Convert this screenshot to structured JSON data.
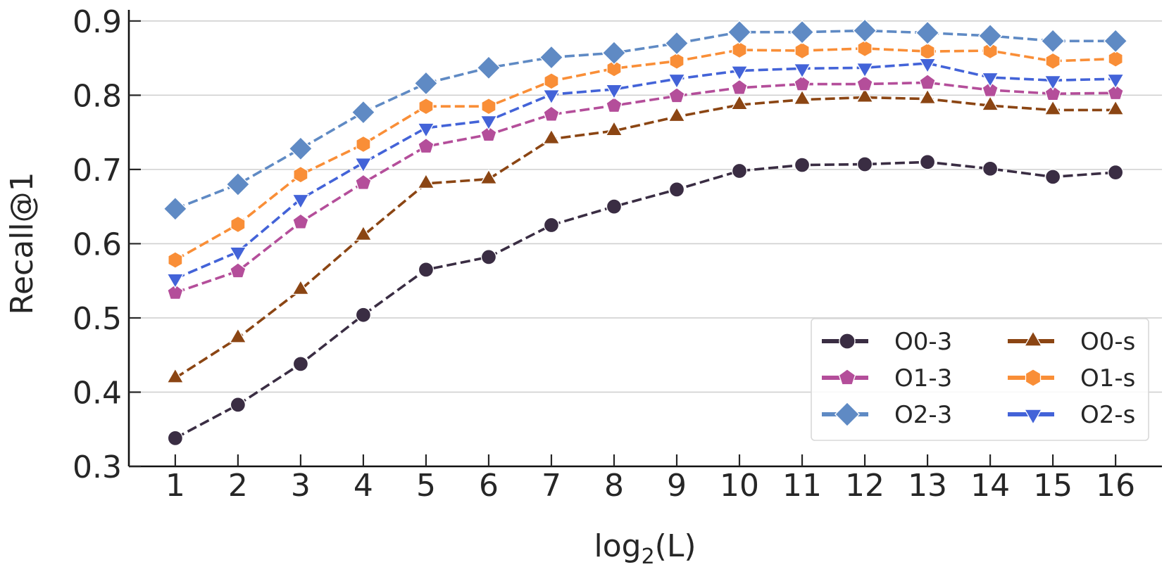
{
  "chart_data": {
    "type": "line",
    "title": "",
    "xlabel_base": "log",
    "xlabel_sub": "2",
    "xlabel_rest": "(L)",
    "xlabel": "log2(L)",
    "ylabel": "Recall@1",
    "x": [
      1,
      2,
      3,
      4,
      5,
      6,
      7,
      8,
      9,
      10,
      11,
      12,
      13,
      14,
      15,
      16
    ],
    "xticks": [
      "1",
      "2",
      "3",
      "4",
      "5",
      "6",
      "7",
      "8",
      "9",
      "10",
      "11",
      "12",
      "13",
      "14",
      "15",
      "16"
    ],
    "yticks": [
      "0.3",
      "0.4",
      "0.5",
      "0.6",
      "0.7",
      "0.8",
      "0.9"
    ],
    "ytick_values": [
      0.3,
      0.4,
      0.5,
      0.6,
      0.7,
      0.8,
      0.9
    ],
    "xlim": [
      0.26,
      16.74
    ],
    "ylim": [
      0.3,
      0.915
    ],
    "grid": "horizontal",
    "legend_position": "lower-right",
    "legend_columns": 2,
    "series": [
      {
        "name": "O0-3",
        "color": "#3a2d43",
        "marker": "circle",
        "values": [
          0.338,
          0.383,
          0.438,
          0.504,
          0.565,
          0.582,
          0.625,
          0.65,
          0.673,
          0.698,
          0.706,
          0.707,
          0.71,
          0.701,
          0.69,
          0.696
        ]
      },
      {
        "name": "O0-s",
        "color": "#8b4513",
        "marker": "triangle-up",
        "values": [
          0.419,
          0.473,
          0.538,
          0.611,
          0.681,
          0.687,
          0.741,
          0.752,
          0.771,
          0.787,
          0.794,
          0.797,
          0.795,
          0.786,
          0.78,
          0.78
        ]
      },
      {
        "name": "O1-3",
        "color": "#b44e9a",
        "marker": "pentagon",
        "values": [
          0.534,
          0.563,
          0.629,
          0.682,
          0.731,
          0.747,
          0.774,
          0.786,
          0.799,
          0.81,
          0.815,
          0.815,
          0.817,
          0.807,
          0.802,
          0.803
        ]
      },
      {
        "name": "O1-s",
        "color": "#f98e37",
        "marker": "hexagon",
        "values": [
          0.578,
          0.626,
          0.693,
          0.734,
          0.785,
          0.785,
          0.819,
          0.836,
          0.846,
          0.861,
          0.86,
          0.863,
          0.859,
          0.86,
          0.846,
          0.849
        ]
      },
      {
        "name": "O2-3",
        "color": "#5f8ac4",
        "marker": "diamond",
        "values": [
          0.647,
          0.68,
          0.728,
          0.777,
          0.816,
          0.837,
          0.851,
          0.857,
          0.87,
          0.885,
          0.885,
          0.887,
          0.884,
          0.88,
          0.873,
          0.873
        ]
      },
      {
        "name": "O2-s",
        "color": "#4363d8",
        "marker": "triangle-down",
        "values": [
          0.553,
          0.589,
          0.66,
          0.709,
          0.756,
          0.766,
          0.801,
          0.808,
          0.822,
          0.833,
          0.836,
          0.837,
          0.843,
          0.824,
          0.82,
          0.822
        ]
      }
    ],
    "legend_order": [
      "O0-3",
      "O0-s",
      "O1-3",
      "O1-s",
      "O2-3",
      "O2-s"
    ]
  }
}
